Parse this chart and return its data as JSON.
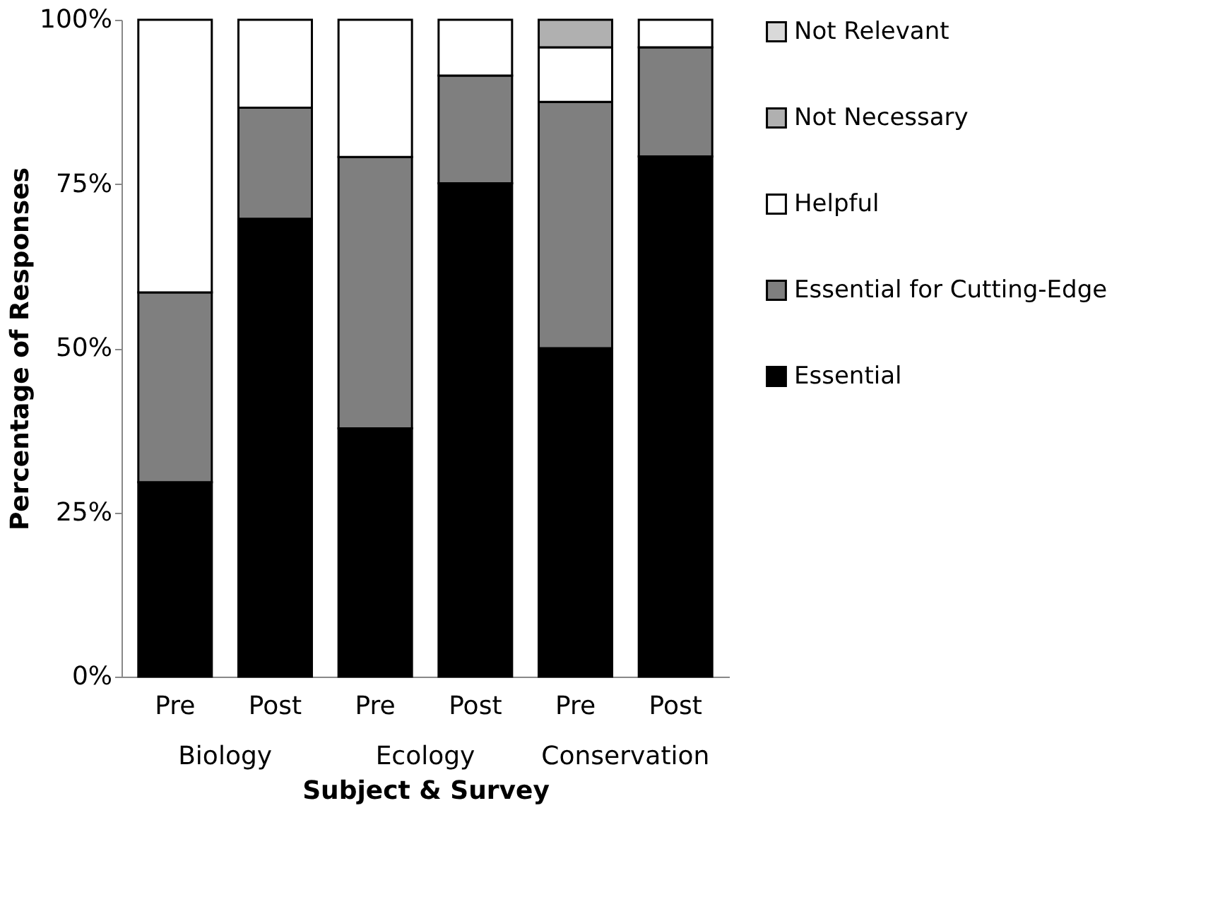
{
  "chart_data": {
    "type": "bar",
    "stacked": true,
    "xlabel": "Subject & Survey",
    "ylabel": "Percentage of Responses",
    "categories": [
      "Pre",
      "Post",
      "Pre",
      "Post",
      "Pre",
      "Post"
    ],
    "series": [
      {
        "name": "Essential",
        "color": "#000000",
        "values": [
          29.6,
          69.7,
          37.8,
          75.1,
          50.0,
          79.2
        ]
      },
      {
        "name": "Essential for Cutting-Edge",
        "color": "#7f7f7f",
        "values": [
          28.9,
          16.9,
          41.3,
          16.4,
          37.5,
          16.6
        ]
      },
      {
        "name": "Helpful",
        "color": "#ffffff",
        "values": [
          41.5,
          13.4,
          20.9,
          8.5,
          8.3,
          4.2
        ]
      },
      {
        "name": "Not Necessary",
        "color": "#b0b0b0",
        "values": [
          0,
          0,
          0,
          0,
          4.2,
          0
        ]
      },
      {
        "name": "Not Relevant",
        "color": "#d9d9d9",
        "values": [
          0,
          0,
          0,
          0,
          0,
          0
        ]
      }
    ],
    "ylim": [
      0,
      100
    ],
    "yticks": [
      {
        "value": 0,
        "label": "0%"
      },
      {
        "value": 25,
        "label": "25%"
      },
      {
        "value": 50,
        "label": "50%"
      },
      {
        "value": 75,
        "label": "75%"
      },
      {
        "value": 100,
        "label": "100%"
      }
    ],
    "annotations": [
      "Biology",
      "Ecology",
      "Conservation"
    ],
    "grid": false,
    "legend": "right"
  }
}
